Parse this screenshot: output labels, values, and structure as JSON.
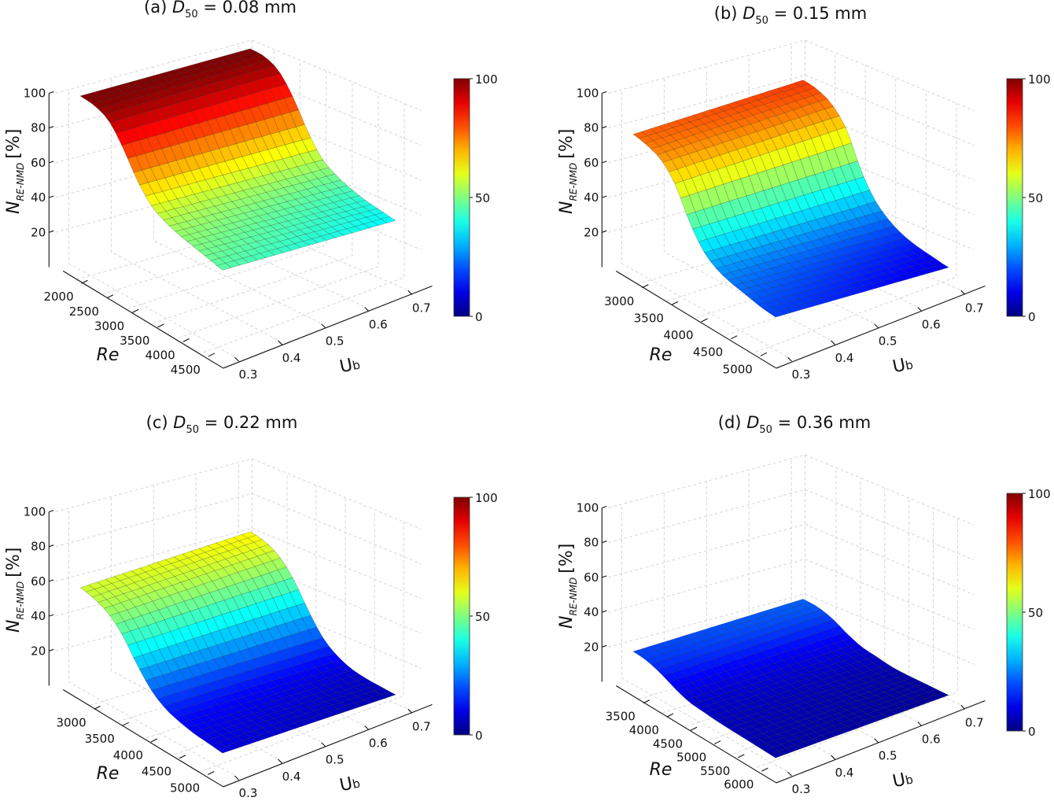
{
  "chart_data": [
    {
      "type": "surface",
      "title": {
        "label": "(a)",
        "var": "D",
        "sub": "50",
        "value_text": "= 0.08 mm"
      },
      "xlabel": "Re",
      "ylabel": {
        "main": "U",
        "sub": "b"
      },
      "zlabel": {
        "main": "N",
        "sub": "RE-NMD",
        "unit": "[%]"
      },
      "re_range": [
        1800,
        4600
      ],
      "re_ticks": [
        2000,
        2500,
        3000,
        3500,
        4000,
        4500
      ],
      "ub_range": [
        0.3,
        0.7
      ],
      "ub_ticks": [
        0.3,
        0.4,
        0.5,
        0.6,
        0.7
      ],
      "z_range": [
        0,
        100
      ],
      "z_ticks": [
        20,
        40,
        60,
        80,
        100
      ],
      "colorbar": {
        "min": 0,
        "max": 100,
        "ticks": [
          0,
          50,
          100
        ],
        "colormap": "jet"
      },
      "Re": [
        1800,
        2080,
        2360,
        2640,
        2920,
        3200,
        3480,
        3760,
        4040,
        4320,
        4600
      ],
      "Ub": [
        0.3,
        0.5,
        0.7
      ],
      "N": [
        [
          100,
          99,
          95,
          84,
          70,
          60,
          55,
          52,
          50,
          48,
          46
        ],
        [
          100,
          99,
          94.5,
          83,
          68,
          57,
          51.5,
          48,
          45.5,
          43.5,
          41.5
        ],
        [
          100,
          99,
          94,
          82,
          66,
          54,
          48,
          44,
          41,
          39,
          37
        ]
      ]
    },
    {
      "type": "surface",
      "title": {
        "label": "(b)",
        "var": "D",
        "sub": "50",
        "value_text": "= 0.15 mm"
      },
      "xlabel": "Re",
      "ylabel": {
        "main": "U",
        "sub": "b"
      },
      "zlabel": {
        "main": "N",
        "sub": "RE-NMD",
        "unit": "[%]"
      },
      "re_range": [
        2700,
        5100
      ],
      "re_ticks": [
        3000,
        3500,
        4000,
        4500,
        5000
      ],
      "ub_range": [
        0.3,
        0.7
      ],
      "ub_ticks": [
        0.3,
        0.4,
        0.5,
        0.6,
        0.7
      ],
      "z_range": [
        0,
        100
      ],
      "z_ticks": [
        20,
        40,
        60,
        80,
        100
      ],
      "colorbar": {
        "min": 0,
        "max": 100,
        "ticks": [
          0,
          50,
          100
        ],
        "colormap": "jet"
      },
      "Re": [
        2700,
        2940,
        3180,
        3420,
        3660,
        3900,
        4140,
        4380,
        4620,
        4860,
        5100
      ],
      "Ub": [
        0.3,
        0.5,
        0.7
      ],
      "N": [
        [
          78,
          76,
          72,
          62,
          45,
          33,
          27,
          24,
          22,
          20,
          19
        ],
        [
          80,
          78,
          73.5,
          63,
          44.5,
          31.5,
          24.5,
          20.5,
          18,
          16,
          14.5
        ],
        [
          82,
          80,
          75,
          64,
          44,
          30,
          22,
          17,
          14,
          12,
          10
        ]
      ]
    },
    {
      "type": "surface",
      "title": {
        "label": "(c)",
        "var": "D",
        "sub": "50",
        "value_text": "= 0.22 mm"
      },
      "xlabel": "Re",
      "ylabel": {
        "main": "U",
        "sub": "b"
      },
      "zlabel": {
        "main": "N",
        "sub": "RE-NMD",
        "unit": "[%]"
      },
      "re_range": [
        2600,
        5100
      ],
      "re_ticks": [
        3000,
        3500,
        4000,
        4500,
        5000
      ],
      "ub_range": [
        0.3,
        0.7
      ],
      "ub_ticks": [
        0.3,
        0.4,
        0.5,
        0.6,
        0.7
      ],
      "z_range": [
        0,
        100
      ],
      "z_ticks": [
        20,
        40,
        60,
        80,
        100
      ],
      "colorbar": {
        "min": 0,
        "max": 100,
        "ticks": [
          0,
          50,
          100
        ],
        "colormap": "jet"
      },
      "Re": [
        2600,
        2850,
        3100,
        3350,
        3600,
        3850,
        4100,
        4350,
        4600,
        4850,
        5100
      ],
      "Ub": [
        0.3,
        0.5,
        0.7
      ],
      "N": [
        [
          58,
          56,
          52,
          44,
          32,
          22,
          16,
          13,
          11,
          10,
          9
        ],
        [
          60.5,
          58.5,
          54,
          45,
          32,
          21,
          14.5,
          11,
          9,
          8,
          7
        ],
        [
          63,
          61,
          56,
          46,
          32,
          20,
          13,
          9,
          7,
          6,
          5
        ]
      ]
    },
    {
      "type": "surface",
      "title": {
        "label": "(d)",
        "var": "D",
        "sub": "50",
        "value_text": "= 0.36 mm"
      },
      "xlabel": "Re",
      "ylabel": {
        "main": "U",
        "sub": "b"
      },
      "zlabel": {
        "main": "N",
        "sub": "RE-NMD",
        "unit": "[%]"
      },
      "re_range": [
        3100,
        6100
      ],
      "re_ticks": [
        3500,
        4000,
        4500,
        5000,
        5500,
        6000
      ],
      "ub_range": [
        0.3,
        0.7
      ],
      "ub_ticks": [
        0.3,
        0.4,
        0.5,
        0.6,
        0.7
      ],
      "z_range": [
        0,
        100
      ],
      "z_ticks": [
        20,
        40,
        60,
        80,
        100
      ],
      "colorbar": {
        "min": 0,
        "max": 100,
        "ticks": [
          0,
          50,
          100
        ],
        "colormap": "jet"
      },
      "Re": [
        3100,
        3400,
        3700,
        4000,
        4300,
        4600,
        4900,
        5200,
        5500,
        5800,
        6100
      ],
      "Ub": [
        0.3,
        0.5,
        0.7
      ],
      "N": [
        [
          19,
          18,
          15,
          11,
          8,
          7,
          6,
          5.5,
          5,
          4.5,
          4
        ],
        [
          20.5,
          19.5,
          16.5,
          12,
          8.5,
          7,
          5.5,
          4.8,
          4.2,
          3.8,
          3.2
        ],
        [
          22,
          21,
          18,
          13,
          9,
          7,
          5,
          4,
          3.5,
          3,
          2.5
        ]
      ]
    }
  ]
}
